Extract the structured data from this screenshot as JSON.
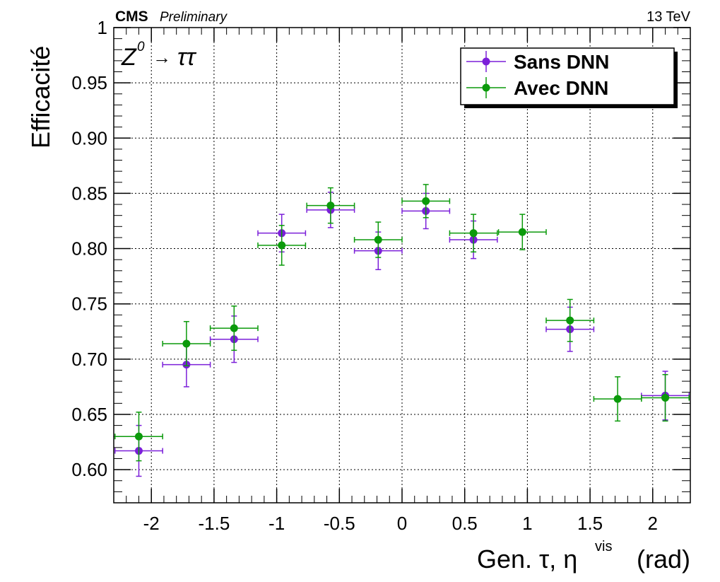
{
  "header": {
    "experiment": "CMS",
    "status": "Preliminary",
    "energy": "13 TeV"
  },
  "annotation": {
    "process_left": "Z",
    "process_sup": "0",
    "process_arrow": "→",
    "process_right": "ττ"
  },
  "colors": {
    "sans": "#7b1fd9",
    "avec": "#0b9a0b",
    "grid": "#000000"
  },
  "chart_data": {
    "type": "scatter",
    "xlabel": "Gen. τ, η",
    "xlabel_sup": "vis",
    "xlabel_unit": "(rad)",
    "ylabel": "Efficacité",
    "xlim": [
      -2.3,
      2.3
    ],
    "ylim": [
      0.57,
      1.0
    ],
    "xticks": [
      -2,
      -1.5,
      -1,
      -0.5,
      0,
      0.5,
      1,
      1.5,
      2
    ],
    "xtick_labels": [
      "-2",
      "-1.5",
      "-1",
      "-0.5",
      "0",
      "0.5",
      "1",
      "1.5",
      "2"
    ],
    "yticks": [
      0.6,
      0.65,
      0.7,
      0.75,
      0.8,
      0.85,
      0.9,
      0.95,
      1.0
    ],
    "ytick_labels": [
      "0.60",
      "0.65",
      "0.70",
      "0.75",
      "0.80",
      "0.85",
      "0.90",
      "0.95",
      "1"
    ],
    "grid": true,
    "legend_position": "top-right",
    "series": [
      {
        "name": "Sans DNN",
        "color": "#7b1fd9",
        "points": [
          {
            "x": -2.1,
            "y": 0.617,
            "xerr": 0.19,
            "yerr_low": 0.023,
            "yerr_high": 0.023
          },
          {
            "x": -1.72,
            "y": 0.695,
            "xerr": 0.19,
            "yerr_low": 0.02,
            "yerr_high": 0.02
          },
          {
            "x": -1.34,
            "y": 0.718,
            "xerr": 0.19,
            "yerr_low": 0.021,
            "yerr_high": 0.021
          },
          {
            "x": -0.96,
            "y": 0.814,
            "xerr": 0.19,
            "yerr_low": 0.017,
            "yerr_high": 0.017
          },
          {
            "x": -0.57,
            "y": 0.835,
            "xerr": 0.19,
            "yerr_low": 0.016,
            "yerr_high": 0.016
          },
          {
            "x": -0.19,
            "y": 0.798,
            "xerr": 0.19,
            "yerr_low": 0.017,
            "yerr_high": 0.017
          },
          {
            "x": 0.19,
            "y": 0.834,
            "xerr": 0.19,
            "yerr_low": 0.016,
            "yerr_high": 0.016
          },
          {
            "x": 0.57,
            "y": 0.808,
            "xerr": 0.19,
            "yerr_low": 0.017,
            "yerr_high": 0.017
          },
          {
            "x": 1.34,
            "y": 0.727,
            "xerr": 0.19,
            "yerr_low": 0.02,
            "yerr_high": 0.02
          },
          {
            "x": 2.1,
            "y": 0.667,
            "xerr": 0.19,
            "yerr_low": 0.022,
            "yerr_high": 0.022
          }
        ]
      },
      {
        "name": "Avec DNN",
        "color": "#0b9a0b",
        "points": [
          {
            "x": -2.1,
            "y": 0.63,
            "xerr": 0.19,
            "yerr_low": 0.022,
            "yerr_high": 0.022
          },
          {
            "x": -1.72,
            "y": 0.714,
            "xerr": 0.19,
            "yerr_low": 0.02,
            "yerr_high": 0.02
          },
          {
            "x": -1.34,
            "y": 0.728,
            "xerr": 0.19,
            "yerr_low": 0.02,
            "yerr_high": 0.02
          },
          {
            "x": -0.96,
            "y": 0.803,
            "xerr": 0.19,
            "yerr_low": 0.018,
            "yerr_high": 0.018
          },
          {
            "x": -0.57,
            "y": 0.839,
            "xerr": 0.19,
            "yerr_low": 0.016,
            "yerr_high": 0.016
          },
          {
            "x": -0.19,
            "y": 0.808,
            "xerr": 0.19,
            "yerr_low": 0.016,
            "yerr_high": 0.016
          },
          {
            "x": 0.19,
            "y": 0.843,
            "xerr": 0.19,
            "yerr_low": 0.015,
            "yerr_high": 0.015
          },
          {
            "x": 0.57,
            "y": 0.814,
            "xerr": 0.19,
            "yerr_low": 0.017,
            "yerr_high": 0.017
          },
          {
            "x": 0.96,
            "y": 0.815,
            "xerr": 0.19,
            "yerr_low": 0.016,
            "yerr_high": 0.016
          },
          {
            "x": 1.34,
            "y": 0.735,
            "xerr": 0.19,
            "yerr_low": 0.019,
            "yerr_high": 0.019
          },
          {
            "x": 1.72,
            "y": 0.664,
            "xerr": 0.19,
            "yerr_low": 0.02,
            "yerr_high": 0.02
          },
          {
            "x": 2.1,
            "y": 0.665,
            "xerr": 0.19,
            "yerr_low": 0.021,
            "yerr_high": 0.021
          }
        ]
      }
    ]
  }
}
